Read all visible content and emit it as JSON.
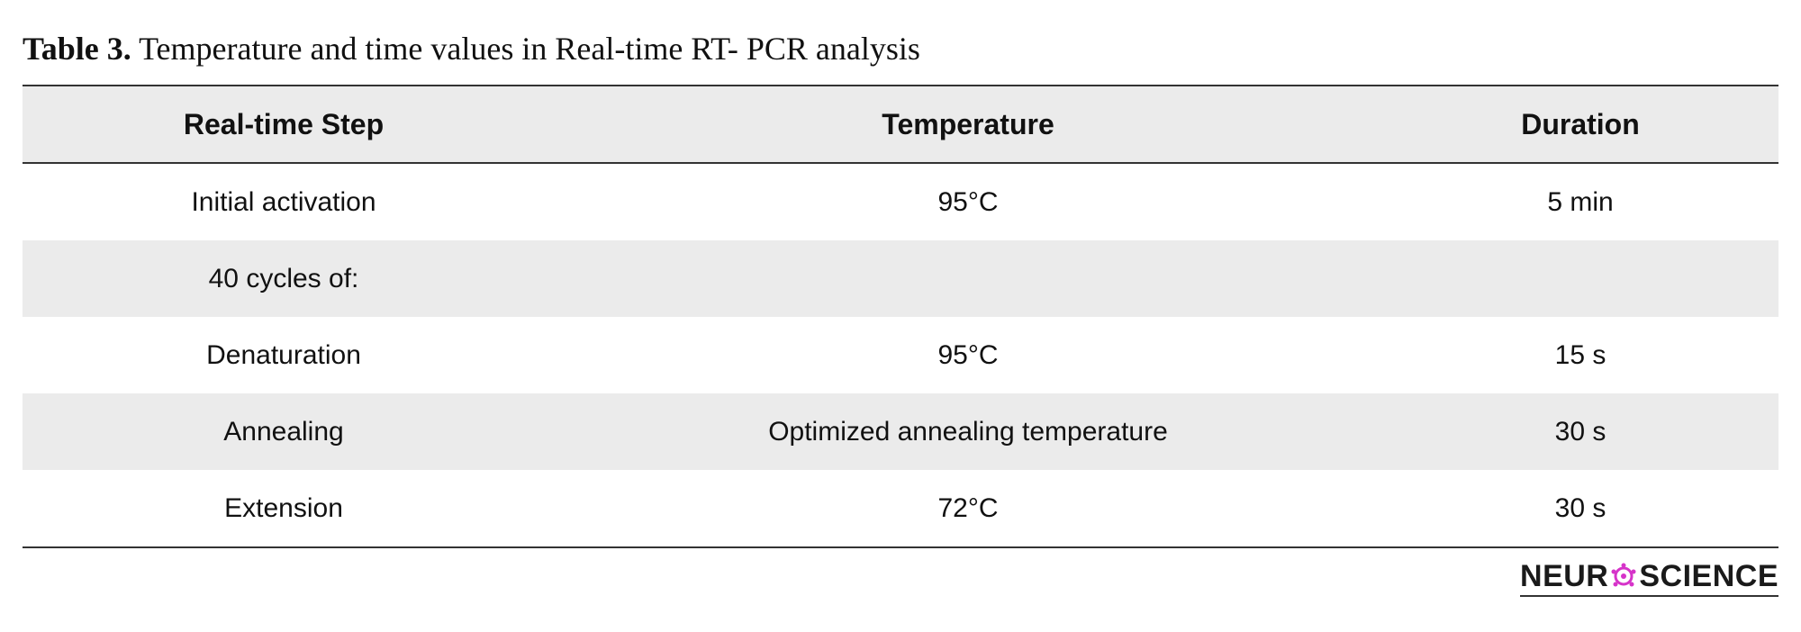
{
  "caption": {
    "label": "Table 3.",
    "text": " Temperature and time values in Real-time RT- PCR analysis"
  },
  "table": {
    "headers": [
      "Real-time Step",
      "Temperature",
      "Duration"
    ],
    "rows": [
      [
        "Initial activation",
        "95°C",
        "5 min"
      ],
      [
        "40 cycles of:",
        "",
        ""
      ],
      [
        "Denaturation",
        "95°C",
        "15 s"
      ],
      [
        "Annealing",
        "Optimized annealing temperature",
        "30 s"
      ],
      [
        "Extension",
        "72°C",
        "30 s"
      ]
    ]
  },
  "logo": {
    "text_left": "NEUR",
    "text_right": "SCIENCE",
    "icon": "neuron-o-icon",
    "accent_color": "#d633c9"
  }
}
